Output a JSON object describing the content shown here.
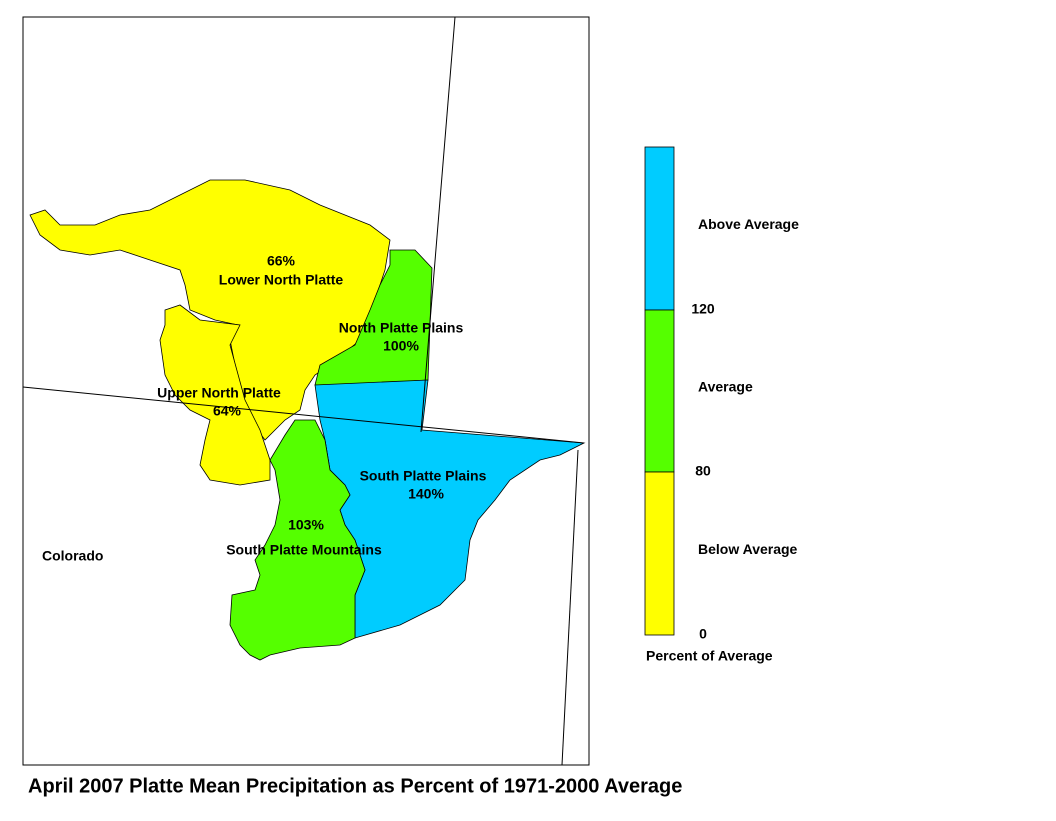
{
  "title": "April 2007 Platte Mean Precipitation as Percent of 1971-2000 Average",
  "state_label": "Colorado",
  "regions": [
    {
      "name": "Lower North Platte",
      "percent": "66%",
      "color": "#ffff00"
    },
    {
      "name": "Upper North Platte",
      "percent": "64%",
      "color": "#ffff00"
    },
    {
      "name": "North Platte Plains",
      "percent": "100%",
      "color": "#55ff00"
    },
    {
      "name": "South Platte Plains",
      "percent": "140%",
      "color": "#00ccff"
    },
    {
      "name": "South Platte Mountains",
      "percent": "103%",
      "color": "#55ff00"
    }
  ],
  "legend": {
    "title": "Percent of Average",
    "classes": [
      {
        "label": "Above Average",
        "color": "#00ccff"
      },
      {
        "label": "Average",
        "color": "#55ff00"
      },
      {
        "label": "Below Average",
        "color": "#ffff00"
      }
    ],
    "breaks": [
      "120",
      "80",
      "0"
    ]
  }
}
